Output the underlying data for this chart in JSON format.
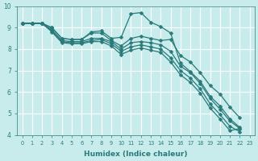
{
  "xlabel": "Humidex (Indice chaleur)",
  "bg_color": "#c8ecec",
  "grid_color": "#ffffff",
  "line_color": "#2a7a7a",
  "marker": "D",
  "markersize": 2.5,
  "linewidth": 0.9,
  "xlim": [
    -0.5,
    23.5
  ],
  "ylim": [
    4,
    10
  ],
  "xticks": [
    0,
    1,
    2,
    3,
    4,
    5,
    6,
    7,
    8,
    9,
    10,
    11,
    12,
    13,
    14,
    15,
    16,
    17,
    18,
    19,
    20,
    21,
    22,
    23
  ],
  "yticks": [
    4,
    5,
    6,
    7,
    8,
    9,
    10
  ],
  "series": [
    {
      "x": [
        0,
        1,
        2,
        3,
        4,
        5,
        6,
        7,
        8,
        9,
        10,
        11,
        12,
        13,
        14,
        15,
        16,
        17,
        18,
        19,
        20,
        21,
        22,
        23
      ],
      "y": [
        9.2,
        9.2,
        9.2,
        9.0,
        8.5,
        8.45,
        8.45,
        8.8,
        8.85,
        8.5,
        8.55,
        9.65,
        9.7,
        9.25,
        9.05,
        8.75,
        7.35,
        6.95,
        6.5,
        5.8,
        5.35,
        4.75,
        4.35,
        null
      ]
    },
    {
      "x": [
        0,
        1,
        2,
        3,
        4,
        5,
        6,
        7,
        8,
        9,
        10,
        11,
        12,
        13,
        14,
        15,
        16,
        17,
        18,
        19,
        20,
        21,
        22,
        23
      ],
      "y": [
        9.2,
        9.2,
        9.2,
        9.0,
        8.5,
        8.45,
        8.45,
        8.75,
        8.75,
        8.4,
        8.15,
        8.5,
        8.6,
        8.5,
        8.4,
        8.45,
        7.7,
        7.4,
        6.9,
        6.3,
        5.9,
        5.3,
        4.8,
        null
      ]
    },
    {
      "x": [
        0,
        1,
        2,
        3,
        4,
        5,
        6,
        7,
        8,
        9,
        10,
        11,
        12,
        13,
        14,
        15,
        16,
        17,
        18,
        19,
        20,
        21,
        22,
        23
      ],
      "y": [
        9.2,
        9.2,
        9.2,
        8.9,
        8.4,
        8.35,
        8.35,
        8.5,
        8.5,
        8.35,
        8.0,
        8.3,
        8.35,
        8.3,
        8.2,
        7.9,
        7.2,
        6.9,
        6.4,
        5.7,
        5.2,
        4.65,
        4.3,
        null
      ]
    },
    {
      "x": [
        0,
        1,
        2,
        3,
        4,
        5,
        6,
        7,
        8,
        9,
        10,
        11,
        12,
        13,
        14,
        15,
        16,
        17,
        18,
        19,
        20,
        21,
        22,
        23
      ],
      "y": [
        9.2,
        9.2,
        9.2,
        8.85,
        8.35,
        8.3,
        8.3,
        8.4,
        8.45,
        8.25,
        7.9,
        8.1,
        8.2,
        8.1,
        8.0,
        7.6,
        7.0,
        6.65,
        6.15,
        5.45,
        4.95,
        4.4,
        4.15,
        null
      ]
    },
    {
      "x": [
        0,
        1,
        2,
        3,
        4,
        5,
        6,
        7,
        8,
        9,
        10,
        11,
        12,
        13,
        14,
        15,
        16,
        17,
        18,
        19,
        20,
        21,
        22,
        23
      ],
      "y": [
        9.2,
        9.2,
        9.2,
        8.8,
        8.3,
        8.25,
        8.25,
        8.35,
        8.35,
        8.15,
        7.75,
        7.95,
        8.05,
        7.95,
        7.85,
        7.4,
        6.8,
        6.45,
        5.95,
        5.25,
        4.75,
        4.2,
        4.3,
        null
      ]
    }
  ]
}
